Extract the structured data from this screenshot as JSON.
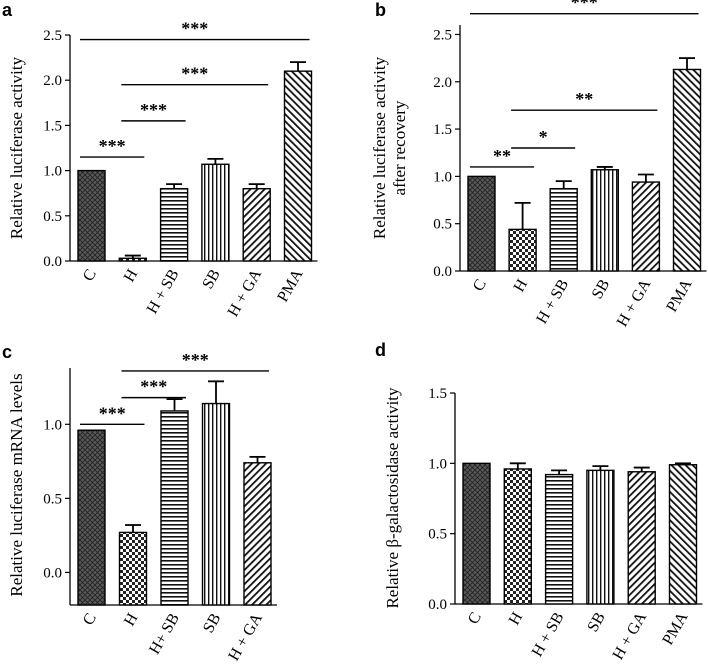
{
  "chart_data": [
    {
      "type": "bar",
      "panel_label": "a",
      "ylabel": "Relative luciferase activity",
      "ylim": [
        0,
        2.5
      ],
      "yticks": [
        "0.0",
        "0.5",
        "1.0",
        "1.5",
        "2.0",
        "2.5"
      ],
      "categories": [
        "C",
        "H",
        "H + SB",
        "SB",
        "H + GA",
        "PMA"
      ],
      "values": [
        1.0,
        0.03,
        0.8,
        1.07,
        0.8,
        2.1
      ],
      "errors": [
        0.0,
        0.03,
        0.05,
        0.06,
        0.05,
        0.1
      ],
      "patterns": [
        "cross",
        "check",
        "hline",
        "vline",
        "diagR",
        "diagL"
      ],
      "annotations": [
        {
          "from": 0,
          "to": 1,
          "at": 1.15,
          "label": "***"
        },
        {
          "from": 1,
          "to": 2,
          "at": 1.55,
          "label": "***"
        },
        {
          "from": 1,
          "to": 4,
          "at": 1.95,
          "label": "***"
        },
        {
          "from": 0,
          "to": 5,
          "at": 2.45,
          "label": "***"
        }
      ]
    },
    {
      "type": "bar",
      "panel_label": "b",
      "ylabel": [
        "Relative luciferase activity",
        "after recovery"
      ],
      "ylim": [
        0,
        2.6
      ],
      "yticks": [
        "0.0",
        "0.5",
        "1.0",
        "1.5",
        "2.0",
        "2.5"
      ],
      "categories": [
        "C",
        "H",
        "H + SB",
        "SB",
        "H + GA",
        "PMA"
      ],
      "values": [
        1.0,
        0.44,
        0.87,
        1.07,
        0.94,
        2.13
      ],
      "errors": [
        0.0,
        0.28,
        0.08,
        0.03,
        0.08,
        0.12
      ],
      "patterns": [
        "cross",
        "check",
        "hline",
        "vline",
        "diagR",
        "diagL"
      ],
      "annotations": [
        {
          "from": 0,
          "to": 1,
          "at": 1.1,
          "label": "**"
        },
        {
          "from": 1,
          "to": 2,
          "at": 1.3,
          "label": "*"
        },
        {
          "from": 1,
          "to": 4,
          "at": 1.7,
          "label": "**"
        },
        {
          "from": 0,
          "to": 5,
          "at": 2.72,
          "label": "***"
        }
      ]
    },
    {
      "type": "bar",
      "panel_label": "c",
      "ylabel": "Relative luciferase mRNA levels",
      "ylim": [
        -0.22,
        1.38
      ],
      "tick_values": [
        0.0,
        0.5,
        1.0
      ],
      "yticks": [
        "0.0",
        "0.5",
        "1.0"
      ],
      "categories": [
        "C",
        "H",
        "H+ SB",
        "SB",
        "H + GA"
      ],
      "values": [
        0.96,
        0.27,
        1.09,
        1.14,
        0.74
      ],
      "errors": [
        0.0,
        0.05,
        0.08,
        0.15,
        0.04
      ],
      "patterns": [
        "cross",
        "check",
        "hline",
        "vline",
        "diagR"
      ],
      "annotations": [
        {
          "from": 0,
          "to": 1,
          "at": 1.0,
          "label": "***"
        },
        {
          "from": 1,
          "to": 2,
          "at": 1.18,
          "label": "***"
        },
        {
          "from": 1,
          "to": 4,
          "at": 1.36,
          "label": "***"
        }
      ]
    },
    {
      "type": "bar",
      "panel_label": "d",
      "ylabel": "Relative β-galactosidase activity",
      "ylim": [
        0,
        1.5
      ],
      "yticks": [
        "0.0",
        "0.5",
        "1.0",
        "1.5"
      ],
      "categories": [
        "C",
        "H",
        "H + SB",
        "SB",
        "H + GA",
        "PMA"
      ],
      "values": [
        1.0,
        0.96,
        0.92,
        0.95,
        0.94,
        0.99
      ],
      "errors": [
        0.0,
        0.04,
        0.03,
        0.03,
        0.03,
        0.01
      ],
      "patterns": [
        "cross",
        "check",
        "hline",
        "vline",
        "diagR",
        "diagL"
      ],
      "annotations": []
    }
  ]
}
